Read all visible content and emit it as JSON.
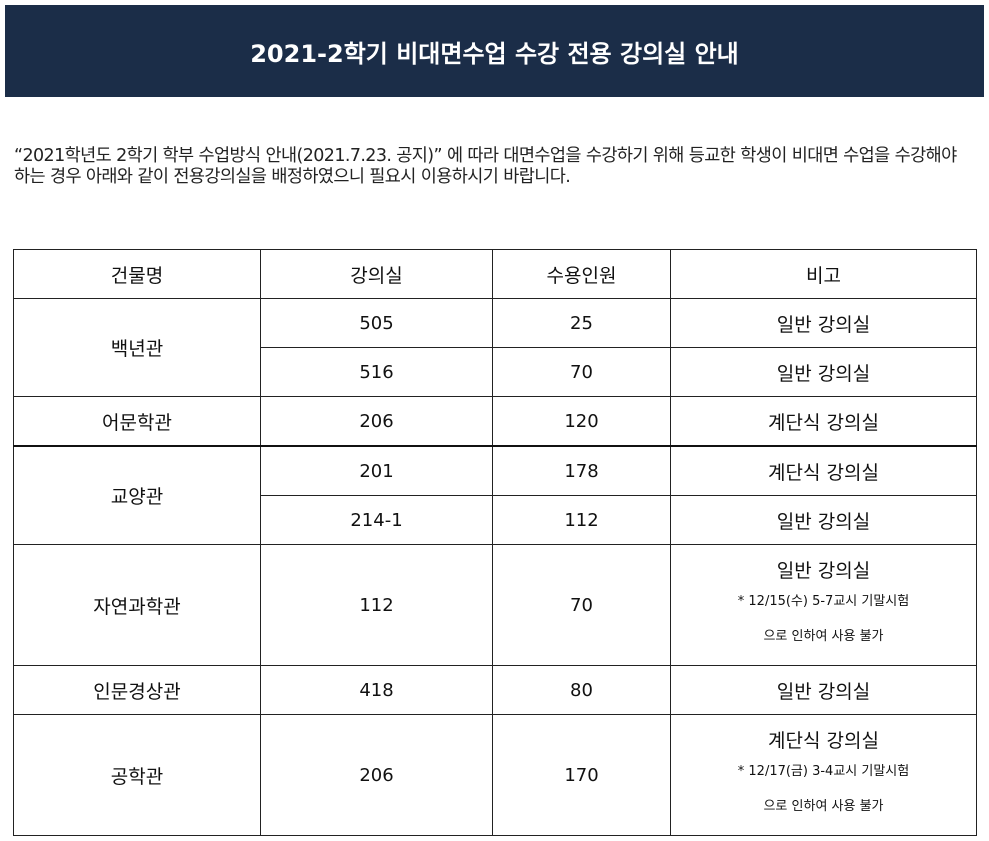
{
  "header": {
    "title": "2021-2학기 비대면수업 수강 전용 강의실 안내",
    "background_color": "#1b2d48"
  },
  "intro": {
    "text": "“2021학년도 2학기 학부 수업방식 안내(2021.7.23. 공지)” 에 따라 대면수업을 수강하기 위해 등교한 학생이 비대면 수업을 수강해야 하는 경우 아래와 같이 전용강의실을 배정하였으니 필요시 이용하시기 바랍니다."
  },
  "table": {
    "headers": [
      "건물명",
      "강의실",
      "수용인원",
      "비고"
    ],
    "rows": [
      {
        "building": "백년관",
        "room": "505",
        "capacity": "25",
        "note": "일반 강의실"
      },
      {
        "building": "",
        "room": "516",
        "capacity": "70",
        "note": "일반 강의실"
      },
      {
        "building": "어문학관",
        "room": "206",
        "capacity": "120",
        "note": "계단식 강의실"
      },
      {
        "building": "교양관",
        "room": "201",
        "capacity": "178",
        "note": "계단식 강의실"
      },
      {
        "building": "",
        "room": "214-1",
        "capacity": "112",
        "note": "일반 강의실"
      },
      {
        "building": "자연과학관",
        "room": "112",
        "capacity": "70",
        "note": "일반 강의실",
        "note_line2": "* 12/15(수) 5-7교시 기말시험",
        "note_line3": "으로 인하여 사용 불가"
      },
      {
        "building": "인문경상관",
        "room": "418",
        "capacity": "80",
        "note": "일반 강의실"
      },
      {
        "building": "공학관",
        "room": "206",
        "capacity": "170",
        "note": "계단식 강의실",
        "note_line2": "* 12/17(금) 3-4교시 기말시험",
        "note_line3": "으로 인하여 사용 불가"
      }
    ]
  }
}
